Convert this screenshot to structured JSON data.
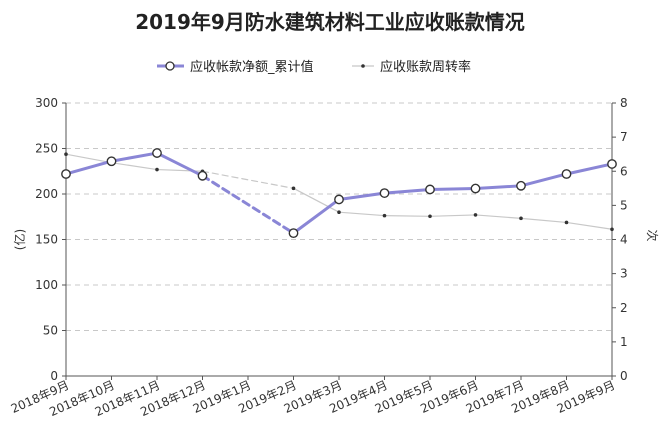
{
  "chart_data": {
    "type": "line",
    "title": "2019年9月防水建筑材料工业应收账款情况",
    "categories": [
      "2018年9月",
      "2018年10月",
      "2018年11月",
      "2018年12月",
      "2019年1月",
      "2019年2月",
      "2019年3月",
      "2019年4月",
      "2019年5月",
      "2019年6月",
      "2019年7月",
      "2019年8月",
      "2019年9月"
    ],
    "series": [
      {
        "name": "应收帐款净额_累计值",
        "axis": "left",
        "color": "#8a86d6",
        "values": [
          222,
          236,
          245,
          220,
          null,
          157,
          194,
          201,
          205,
          206,
          209,
          222,
          233
        ]
      },
      {
        "name": "应收账款周转率",
        "axis": "right",
        "color": "#c8c8c8",
        "values": [
          6.5,
          6.25,
          6.05,
          6.0,
          null,
          5.5,
          4.8,
          4.7,
          4.68,
          4.72,
          4.62,
          4.5,
          4.3
        ]
      }
    ],
    "ylabel": "(亿)",
    "y2label": "次",
    "ylim": [
      0,
      300
    ],
    "y2lim": [
      0,
      8
    ],
    "yticks": [
      0,
      50,
      100,
      150,
      200,
      250,
      300
    ],
    "y2ticks": [
      0,
      1,
      2,
      3,
      4,
      5,
      6,
      7,
      8
    ],
    "grid": true,
    "legend_position": "top"
  }
}
